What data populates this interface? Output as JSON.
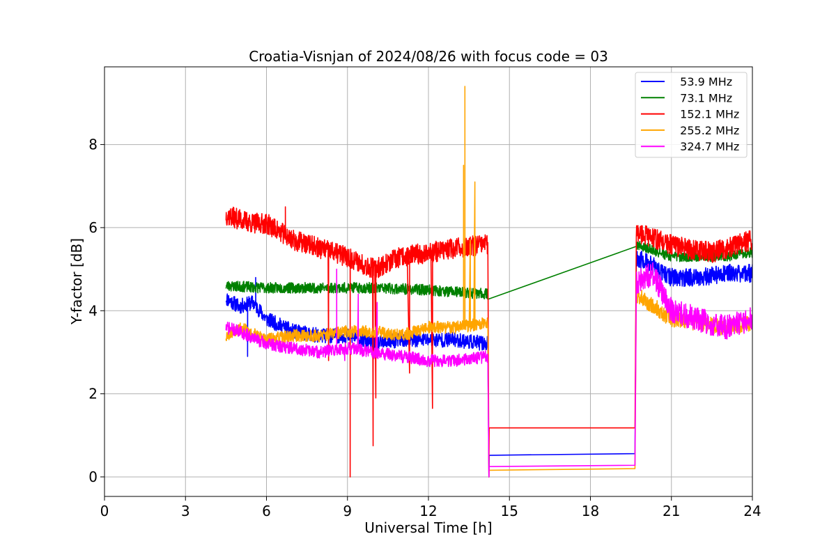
{
  "chart_data": {
    "type": "line",
    "title": "Croatia-Visnjan of 2024/08/26 with focus code = 03",
    "xlabel": "Universal Time [h]",
    "ylabel": "Y-factor [dB]",
    "xlim": [
      0,
      24
    ],
    "ylim": [
      -0.47,
      9.87
    ],
    "xticks": [
      0,
      3,
      6,
      9,
      12,
      15,
      18,
      21,
      24
    ],
    "yticks": [
      0,
      2,
      4,
      6,
      8
    ],
    "grid": true,
    "legend_position": "top-right",
    "series": [
      {
        "name": "  53.9 MHz",
        "color": "#0000ff",
        "base": [
          [
            4.5,
            4.3
          ],
          [
            5.0,
            4.1
          ],
          [
            5.5,
            4.2
          ],
          [
            6.0,
            3.8
          ],
          [
            7.0,
            3.5
          ],
          [
            8.0,
            3.4
          ],
          [
            9.0,
            3.4
          ],
          [
            10.0,
            3.2
          ],
          [
            11.0,
            3.3
          ],
          [
            12.0,
            3.3
          ],
          [
            13.0,
            3.3
          ],
          [
            14.2,
            3.2
          ]
        ],
        "noise": 0.18,
        "seed": 11,
        "spikes": [
          [
            5.6,
            4.8
          ],
          [
            5.3,
            2.9
          ]
        ],
        "bridge": [
          [
            14.25,
            0.52
          ],
          [
            19.65,
            0.56
          ]
        ],
        "segment2": [
          [
            19.7,
            5.3
          ],
          [
            20.5,
            5.0
          ],
          [
            21.0,
            4.8
          ],
          [
            22.0,
            4.8
          ],
          [
            23.0,
            4.9
          ],
          [
            24.0,
            4.9
          ]
        ],
        "noise2": 0.22
      },
      {
        "name": "  73.1 MHz",
        "color": "#008000",
        "base": [
          [
            4.5,
            4.6
          ],
          [
            6.0,
            4.55
          ],
          [
            8.0,
            4.55
          ],
          [
            10.0,
            4.55
          ],
          [
            12.0,
            4.5
          ],
          [
            14.2,
            4.4
          ]
        ],
        "noise": 0.13,
        "seed": 23,
        "spikes": [],
        "bridge": null,
        "segment2": [
          [
            19.7,
            5.6
          ],
          [
            21.0,
            5.3
          ],
          [
            22.0,
            5.3
          ],
          [
            23.0,
            5.3
          ],
          [
            24.0,
            5.4
          ]
        ],
        "noise2": 0.12
      },
      {
        "name": "  152.1 MHz",
        "color": "#ff0000",
        "base": [
          [
            4.5,
            6.3
          ],
          [
            5.5,
            6.1
          ],
          [
            6.0,
            6.1
          ],
          [
            7.0,
            5.7
          ],
          [
            8.0,
            5.5
          ],
          [
            9.0,
            5.3
          ],
          [
            10.0,
            5.0
          ],
          [
            11.0,
            5.3
          ],
          [
            12.0,
            5.4
          ],
          [
            13.0,
            5.5
          ],
          [
            14.2,
            5.6
          ]
        ],
        "noise": 0.25,
        "seed": 37,
        "spikes": [
          [
            9.1,
            0.0
          ],
          [
            9.95,
            0.75
          ],
          [
            10.05,
            1.9
          ],
          [
            12.15,
            1.65
          ],
          [
            6.7,
            6.5
          ],
          [
            11.3,
            2.5
          ],
          [
            8.3,
            2.8
          ]
        ],
        "bridge": [
          [
            14.25,
            1.18
          ],
          [
            19.65,
            1.18
          ]
        ],
        "segment2": [
          [
            19.7,
            5.9
          ],
          [
            20.5,
            5.7
          ],
          [
            21.5,
            5.5
          ],
          [
            22.5,
            5.4
          ],
          [
            23.5,
            5.6
          ],
          [
            24.0,
            5.7
          ]
        ],
        "noise2": 0.25
      },
      {
        "name": "  255.2 MHz",
        "color": "#ffa500",
        "base": [
          [
            4.5,
            3.4
          ],
          [
            5.0,
            3.6
          ],
          [
            6.0,
            3.3
          ],
          [
            7.0,
            3.4
          ],
          [
            8.0,
            3.4
          ],
          [
            9.0,
            3.5
          ],
          [
            10.0,
            3.5
          ],
          [
            11.0,
            3.4
          ],
          [
            12.0,
            3.6
          ],
          [
            13.0,
            3.6
          ],
          [
            14.2,
            3.7
          ]
        ],
        "noise": 0.15,
        "seed": 53,
        "spikes": [
          [
            13.35,
            9.4
          ],
          [
            13.3,
            7.5
          ],
          [
            13.72,
            7.1
          ],
          [
            13.55,
            5.7
          ]
        ],
        "bridge": [
          [
            14.25,
            0.16
          ],
          [
            19.65,
            0.2
          ]
        ],
        "segment2": [
          [
            19.7,
            4.4
          ],
          [
            21.0,
            3.8
          ],
          [
            22.0,
            3.7
          ],
          [
            23.0,
            3.6
          ],
          [
            24.0,
            3.7
          ]
        ],
        "noise2": 0.2
      },
      {
        "name": "  324.7 MHz",
        "color": "#ff00ff",
        "base": [
          [
            4.5,
            3.6
          ],
          [
            5.0,
            3.5
          ],
          [
            6.0,
            3.2
          ],
          [
            7.0,
            3.1
          ],
          [
            8.0,
            3.0
          ],
          [
            9.0,
            3.1
          ],
          [
            10.0,
            3.0
          ],
          [
            11.0,
            2.9
          ],
          [
            12.0,
            2.8
          ],
          [
            13.0,
            2.8
          ],
          [
            14.2,
            2.9
          ]
        ],
        "noise": 0.15,
        "seed": 71,
        "spikes": [
          [
            8.6,
            5.0
          ],
          [
            9.4,
            4.4
          ],
          [
            10.1,
            4.2
          ],
          [
            8.9,
            2.8
          ]
        ],
        "bridge": [
          [
            14.25,
            0.25
          ],
          [
            19.65,
            0.28
          ]
        ],
        "segment2": [
          [
            19.7,
            4.7
          ],
          [
            20.3,
            4.9
          ],
          [
            21.0,
            4.0
          ],
          [
            22.0,
            3.8
          ],
          [
            23.0,
            3.6
          ],
          [
            24.0,
            3.8
          ]
        ],
        "noise2": 0.3
      }
    ]
  }
}
